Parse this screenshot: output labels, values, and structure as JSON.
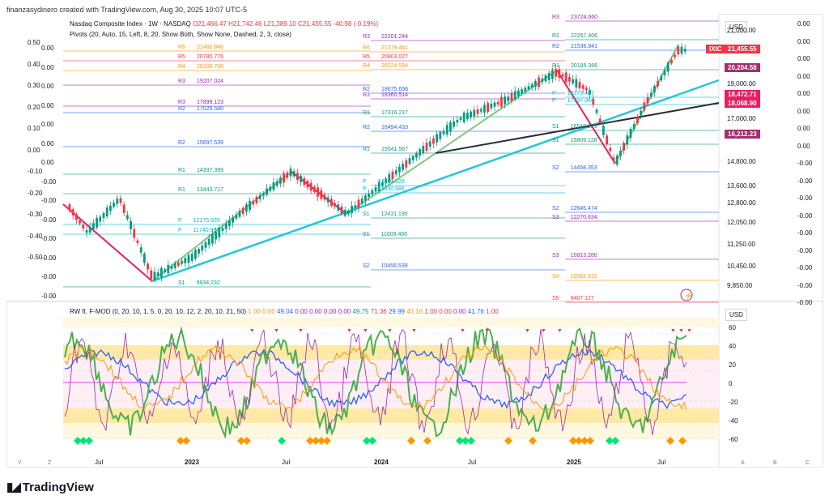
{
  "header": {
    "text": "finanzasydinero created with TradingView.com, Aug 30, 2025 10:07 UTC-5"
  },
  "main_pane": {
    "symbol_line": "Nasdaq Composite Index · 1W · NASDAQ",
    "ohlc": {
      "o": "O21,466.47",
      "h": "H21,742.46",
      "l": "L21,389.10",
      "c": "C21,455.55",
      "chg": "-40.98 (-0.19%)"
    },
    "pivots_line": "Pivots (20, Auto, 15, Left, 8, 20, Show Both, Show None, Dashed, 2, 3, close)",
    "currency": "USD",
    "symbol_tag": "IXIC",
    "price_tags": [
      {
        "label": "21,455.55",
        "color": "#f23645"
      },
      {
        "label": "20,204.58",
        "color": "#a0306e"
      },
      {
        "label": "18,472.71",
        "color": "#e91e63"
      },
      {
        "label": "18,068.90",
        "color": "#e91e63"
      },
      {
        "label": "16,212.23",
        "color": "#a0306e"
      }
    ],
    "right_axis_1": [
      "21,000.00",
      "19,000.00",
      "17,000.00",
      "14,800.00",
      "13,600.00",
      "12,800.00",
      "12,050.00",
      "11,250.00",
      "10,450.00",
      "9,850.00"
    ],
    "right_axis_2": [
      "0.00",
      "0.00",
      "0.00",
      "0.00",
      "0.00",
      "0.00",
      "0.00",
      "0.00",
      "-0.00",
      "-0.00",
      "-0.00",
      "-0.00",
      "-0.00",
      "-0.00",
      "-0.00",
      "-0.00",
      "-0.00"
    ],
    "left_axis_1": [
      "0.50",
      "0.40",
      "0.30",
      "0.20",
      "0.10",
      "0.00",
      "-0.10",
      "-0.20",
      "-0.30",
      "-0.40",
      "-0.50"
    ],
    "left_axis_2": [
      "0.00",
      "0.00",
      "0.00",
      "0.00",
      "0.00",
      "0.00",
      "0.00",
      "-0.00",
      "-0.00",
      "-0.00",
      "-0.00",
      "-0.00",
      "-0.00",
      "-0.00"
    ],
    "pivot_labels": [
      {
        "t": "R6",
        "v": "21460.846",
        "c": "#ff9800"
      },
      {
        "t": "R5",
        "v": "20780.776",
        "c": "#f23645"
      },
      {
        "t": "R4",
        "v": "20100.706",
        "c": "#ff9800"
      },
      {
        "t": "R3",
        "v": "19207.024",
        "c": "#9c27b0"
      },
      {
        "t": "R3",
        "v": "17899.123",
        "c": "#9c27b0"
      },
      {
        "t": "R2",
        "v": "17529.580",
        "c": "#2962ff"
      },
      {
        "t": "R2",
        "v": "15697.539",
        "c": "#2962ff"
      },
      {
        "t": "R1",
        "v": "14337.399",
        "c": "#089981"
      },
      {
        "t": "R1",
        "v": "13443.717",
        "c": "#089981"
      },
      {
        "t": "P",
        "v": "12175.935",
        "c": "#00bcd4"
      },
      {
        "t": "P",
        "v": "11740.955",
        "c": "#00bcd4"
      },
      {
        "t": "S1",
        "v": "9934.232",
        "c": "#089981"
      },
      {
        "t": "R3",
        "v": "22201.244",
        "c": "#9c27b0"
      },
      {
        "t": "R6",
        "v": "21379.461",
        "c": "#ff9800"
      },
      {
        "t": "R5",
        "v": "20803.027",
        "c": "#f23645"
      },
      {
        "t": "R4",
        "v": "20224.594",
        "c": "#ff9800"
      },
      {
        "t": "R2",
        "v": "18675.656",
        "c": "#2962ff"
      },
      {
        "t": "R3",
        "v": "18360.514",
        "c": "#9c27b0"
      },
      {
        "t": "R1",
        "v": "17316.217",
        "c": "#089981"
      },
      {
        "t": "R2",
        "v": "16494.433",
        "c": "#2962ff"
      },
      {
        "t": "R1",
        "v": "15541.567",
        "c": "#089981"
      },
      {
        "t": "P",
        "v": "13790.628",
        "c": "#00bcd4"
      },
      {
        "t": "P",
        "v": "13430.686",
        "c": "#00bcd4"
      },
      {
        "t": "S1",
        "v": "12431.190",
        "c": "#089981"
      },
      {
        "t": "S1",
        "v": "11609.406",
        "c": "#089981"
      },
      {
        "t": "S2",
        "v": "10456.539",
        "c": "#2962ff"
      },
      {
        "t": "R3",
        "v": "23724.660",
        "c": "#9c27b0"
      },
      {
        "t": "R1",
        "v": "22267.406",
        "c": "#089981"
      },
      {
        "t": "R2",
        "v": "21536.941",
        "c": "#2962ff"
      },
      {
        "t": "R1",
        "v": "20185.366",
        "c": "#089981"
      },
      {
        "t": "P",
        "v": "18375.487",
        "c": "#00bcd4"
      },
      {
        "t": "P",
        "v": "17997.064",
        "c": "#00bcd4"
      },
      {
        "t": "S1",
        "v": "16510.223",
        "c": "#089981"
      },
      {
        "t": "S1",
        "v": "15809.128",
        "c": "#089981"
      },
      {
        "t": "S2",
        "v": "14458.353",
        "c": "#2962ff"
      },
      {
        "t": "S2",
        "v": "12645.474",
        "c": "#2962ff"
      },
      {
        "t": "S3",
        "v": "12270.634",
        "c": "#9c27b0"
      },
      {
        "t": "S3",
        "v": "10813.280",
        "c": "#9c27b0"
      },
      {
        "t": "S4",
        "v": "10082.915",
        "c": "#ff9800"
      },
      {
        "t": "S5",
        "v": "9407.127",
        "c": "#f23645"
      }
    ]
  },
  "osc_pane": {
    "legend_name": "RW ft. F-MOD (0, 20, 10, 1, 5, 0, 20, 10, 12, 2, 20, 10, 21, 50)",
    "values": [
      {
        "v": "1.00",
        "c": "o"
      },
      {
        "v": "0.00",
        "c": "o"
      },
      {
        "v": "49.04",
        "c": "b"
      },
      {
        "v": "0.00",
        "c": "p"
      },
      {
        "v": "0.00",
        "c": "p"
      },
      {
        "v": "0.00",
        "c": "p"
      },
      {
        "v": "0.00",
        "c": "p"
      },
      {
        "v": "49.75",
        "c": "g"
      },
      {
        "v": "71.36",
        "c": "r"
      },
      {
        "v": "29.99",
        "c": "b"
      },
      {
        "v": "43.16",
        "c": "o"
      },
      {
        "v": "1.00",
        "c": "r"
      },
      {
        "v": "0.00",
        "c": "r"
      },
      {
        "v": "0.00",
        "c": "p"
      },
      {
        "v": "41.76",
        "c": "b"
      },
      {
        "v": "1.00",
        "c": "r"
      }
    ],
    "currency": "USD",
    "axis": [
      "60",
      "40",
      "20",
      "0",
      "-20",
      "-40",
      "-60"
    ]
  },
  "time_axis": {
    "labels": [
      {
        "t": "Jul",
        "bold": false
      },
      {
        "t": "2023",
        "bold": true
      },
      {
        "t": "Jul",
        "bold": false
      },
      {
        "t": "2024",
        "bold": true
      },
      {
        "t": "Jul",
        "bold": false
      },
      {
        "t": "2025",
        "bold": true
      },
      {
        "t": "Jul",
        "bold": false
      }
    ],
    "corner_left": [
      "Y",
      "Z"
    ],
    "corner_right": [
      "A",
      "B",
      "C"
    ]
  },
  "footer": {
    "brand": "TradingView"
  },
  "colors": {
    "up": "#089981",
    "down": "#f23645",
    "trend_pink": "#e91e63",
    "trend_green": "#81c784",
    "trend_cyan": "#26c6da",
    "trend_black": "#2a2e39"
  }
}
